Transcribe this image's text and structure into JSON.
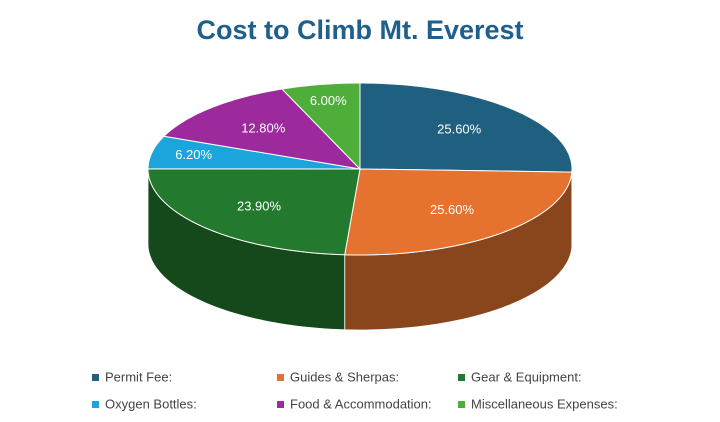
{
  "chart_data": {
    "type": "pie",
    "title": "Cost to Climb Mt. Everest",
    "categories": [
      "Permit Fee:",
      "Guides & Sherpas:",
      "Gear & Equipment:",
      "Oxygen Bottles:",
      "Food & Accommodation:",
      "Miscellaneous Expenses:"
    ],
    "values": [
      25.6,
      25.6,
      23.9,
      6.2,
      12.8,
      6.0
    ],
    "value_labels": [
      "25.60%",
      "25.60%",
      "23.90%",
      "6.20%",
      "12.80%",
      "6.00%"
    ],
    "colors": [
      "#1f5f80",
      "#e5732f",
      "#237a2e",
      "#1ca4dc",
      "#9c2a9c",
      "#4fae3a"
    ],
    "legend": "bottom"
  }
}
